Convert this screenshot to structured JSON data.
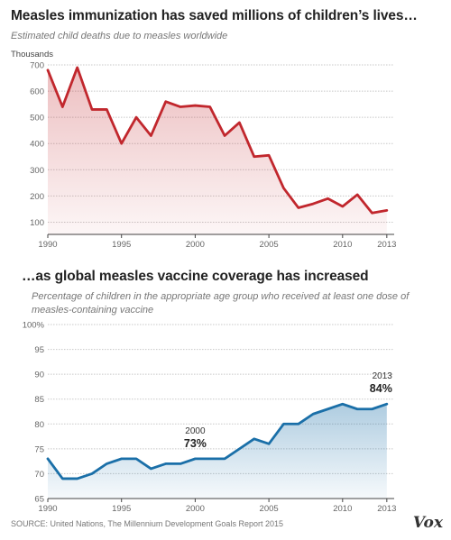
{
  "chart_data": [
    {
      "type": "area",
      "title": "Measles immunization has saved millions of children’s lives…",
      "subtitle": "Estimated child deaths due to measles worldwide",
      "ylabel": "Thousands",
      "x": [
        1990,
        1991,
        1992,
        1993,
        1994,
        1995,
        1996,
        1997,
        1998,
        1999,
        2000,
        2001,
        2002,
        2003,
        2004,
        2005,
        2006,
        2007,
        2008,
        2009,
        2010,
        2011,
        2012,
        2013
      ],
      "series": [
        {
          "values": [
            680,
            540,
            690,
            530,
            530,
            400,
            500,
            430,
            560,
            540,
            545,
            540,
            430,
            480,
            350,
            355,
            230,
            155,
            170,
            190,
            160,
            205,
            135,
            145
          ]
        }
      ],
      "xlim": [
        1990,
        2013.5
      ],
      "ylim": [
        50,
        700
      ],
      "yticks": [
        100,
        200,
        300,
        400,
        500,
        600,
        700
      ],
      "xtick_labels": [
        "1990",
        "1995",
        "2000",
        "2005",
        "2010",
        "2013"
      ],
      "xtick_values": [
        1990,
        1995,
        2000,
        2005,
        2010,
        2013
      ],
      "grid": true,
      "color": "#c1272d"
    },
    {
      "type": "area",
      "title": "…as global measles vaccine coverage has increased",
      "subtitle": "Percentage of children in the appropriate age group who received at least one dose of measles-containing vaccine",
      "x": [
        1990,
        1991,
        1992,
        1993,
        1994,
        1995,
        1996,
        1997,
        1998,
        1999,
        2000,
        2001,
        2002,
        2003,
        2004,
        2005,
        2006,
        2007,
        2008,
        2009,
        2010,
        2011,
        2012,
        2013
      ],
      "series": [
        {
          "values": [
            73,
            69,
            69,
            70,
            72,
            73,
            73,
            71,
            72,
            72,
            73,
            73,
            73,
            75,
            77,
            76,
            80,
            80,
            82,
            83,
            84,
            83,
            83,
            84
          ]
        }
      ],
      "xlim": [
        1990,
        2013.5
      ],
      "ylim": [
        65,
        100
      ],
      "yticks": [
        65,
        70,
        75,
        80,
        85,
        90,
        95,
        100
      ],
      "ytick_labels": [
        "65",
        "70",
        "75",
        "80",
        "85",
        "90",
        "95",
        "100%"
      ],
      "xtick_labels": [
        "1990",
        "1995",
        "2000",
        "2005",
        "2010",
        "2013"
      ],
      "xtick_values": [
        1990,
        1995,
        2000,
        2005,
        2010,
        2013
      ],
      "grid": true,
      "color": "#1a6fa8",
      "annotations": [
        {
          "year": "2000",
          "value": "73%",
          "x": 2000
        },
        {
          "year": "2013",
          "value": "84%",
          "x": 2013
        }
      ]
    }
  ],
  "footer": {
    "source": "SOURCE: United Nations, The Millennium Development Goals Report 2015",
    "logo": "Vox"
  }
}
